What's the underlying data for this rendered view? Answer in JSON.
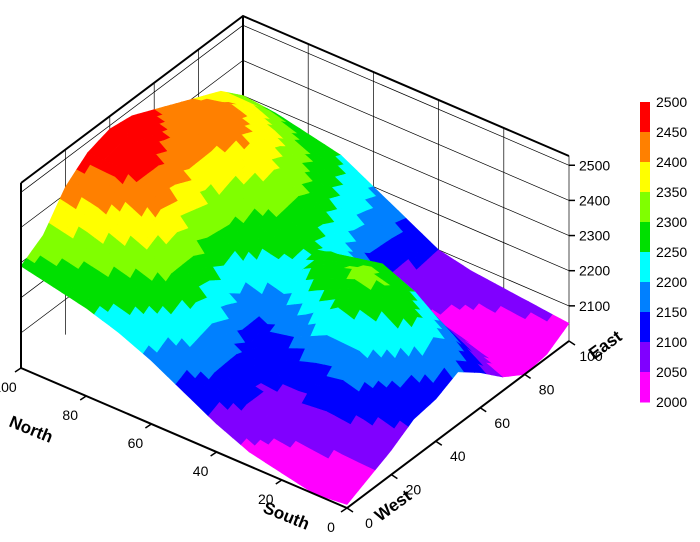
{
  "chart_data": {
    "type": "surface3d",
    "title": "",
    "axes": {
      "north_south": {
        "label_high": "North",
        "label_low": "South",
        "ticks": [
          "0",
          "20",
          "40",
          "60",
          "80",
          "100"
        ]
      },
      "west_east": {
        "label_low": "West",
        "label_high": "East",
        "ticks": [
          "0",
          "20",
          "40",
          "60",
          "80",
          "100"
        ]
      },
      "z": {
        "ticks": [
          "2100",
          "2200",
          "2300",
          "2400",
          "2500"
        ],
        "range": [
          2000,
          2500
        ]
      }
    },
    "grid": true,
    "legend_position": "right",
    "colorbar": {
      "labels": [
        "2500",
        "2450",
        "2400",
        "2350",
        "2300",
        "2250",
        "2200",
        "2150",
        "2100",
        "2050",
        "2000"
      ],
      "bands": [
        {
          "from": 2450,
          "to": 2500,
          "color": "#ff0000"
        },
        {
          "from": 2400,
          "to": 2450,
          "color": "#ff8000"
        },
        {
          "from": 2350,
          "to": 2400,
          "color": "#ffff00"
        },
        {
          "from": 2300,
          "to": 2350,
          "color": "#80ff00"
        },
        {
          "from": 2250,
          "to": 2300,
          "color": "#00e000"
        },
        {
          "from": 2200,
          "to": 2250,
          "color": "#00ffff"
        },
        {
          "from": 2150,
          "to": 2200,
          "color": "#0080ff"
        },
        {
          "from": 2100,
          "to": 2150,
          "color": "#0000ff"
        },
        {
          "from": 2050,
          "to": 2100,
          "color": "#8000ff"
        },
        {
          "from": 2000,
          "to": 2050,
          "color": "#ff00ff"
        }
      ]
    },
    "elevation_grid": {
      "rows_north_to_south": [
        [
          2290,
          2330,
          2420,
          2470,
          2490,
          2480,
          2450,
          2420,
          2390,
          2360,
          2300
        ],
        [
          2270,
          2310,
          2400,
          2470,
          2480,
          2450,
          2430,
          2430,
          2410,
          2360,
          2290
        ],
        [
          2250,
          2290,
          2360,
          2420,
          2410,
          2380,
          2390,
          2410,
          2380,
          2320,
          2270
        ],
        [
          2220,
          2270,
          2320,
          2330,
          2300,
          2290,
          2330,
          2350,
          2320,
          2280,
          2250
        ],
        [
          2180,
          2220,
          2250,
          2230,
          2180,
          2260,
          2280,
          2290,
          2260,
          2230,
          2200
        ],
        [
          2130,
          2160,
          2170,
          2130,
          2150,
          2240,
          2250,
          2220,
          2180,
          2170,
          2150
        ],
        [
          2080,
          2110,
          2100,
          2120,
          2200,
          2290,
          2270,
          2170,
          2080,
          2090,
          2100
        ],
        [
          2040,
          2060,
          2090,
          2150,
          2260,
          2320,
          2290,
          2160,
          2050,
          2060,
          2080
        ],
        [
          2020,
          2050,
          2100,
          2170,
          2230,
          2300,
          2250,
          2120,
          2030,
          2040,
          2070
        ],
        [
          2000,
          2040,
          2090,
          2140,
          2170,
          2240,
          2180,
          2080,
          2010,
          2030,
          2060
        ],
        [
          2010,
          2040,
          2070,
          2110,
          2120,
          2150,
          2100,
          2040,
          2000,
          2010,
          2050
        ]
      ],
      "x_north_to_south": [
        100,
        90,
        80,
        70,
        60,
        50,
        40,
        30,
        20,
        10,
        0
      ],
      "y_west_to_east": [
        0,
        10,
        20,
        30,
        40,
        50,
        60,
        70,
        80,
        90,
        100
      ]
    }
  }
}
